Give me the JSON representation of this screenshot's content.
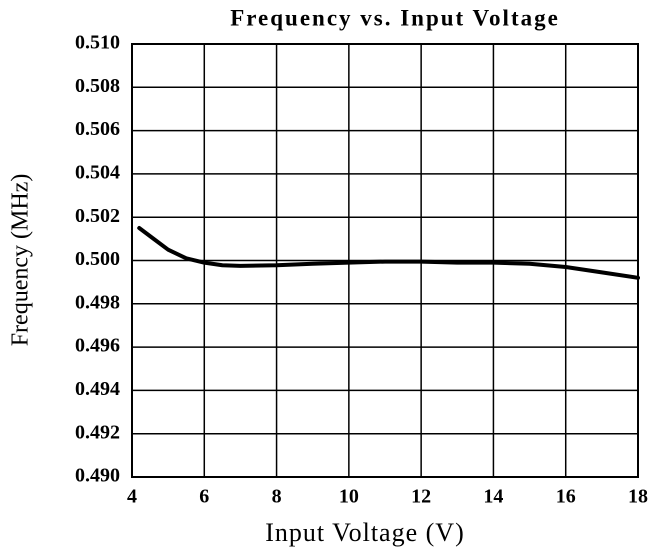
{
  "chart_data": {
    "type": "line",
    "title": "Frequency vs. Input Voltage",
    "xlabel": "Input Voltage (V)",
    "ylabel": "Frequency (MHz)",
    "x": [
      4.2,
      4.6,
      5,
      5.5,
      6,
      6.5,
      7,
      8,
      9,
      10,
      11,
      12,
      13,
      14,
      15,
      16,
      17,
      18
    ],
    "series": [
      {
        "name": "Frequency",
        "color": "#000000",
        "values": [
          0.5015,
          0.501,
          0.5005,
          0.5001,
          0.4999,
          0.49978,
          0.49975,
          0.49978,
          0.49985,
          0.4999,
          0.49995,
          0.49995,
          0.4999,
          0.4999,
          0.49985,
          0.4997,
          0.49945,
          0.4992
        ]
      }
    ],
    "xlim": [
      4,
      18
    ],
    "xticks": [
      4,
      6,
      8,
      10,
      12,
      14,
      16,
      18
    ],
    "ylim": [
      0.49,
      0.51
    ],
    "yticks": [
      {
        "value": 0.49,
        "label": "0.490"
      },
      0.492,
      0.494,
      0.496,
      0.498,
      {
        "value": 0.5,
        "label": "0.500"
      },
      0.502,
      0.504,
      0.506,
      0.508,
      {
        "value": 0.51,
        "label": "0.510"
      }
    ],
    "grid": true
  }
}
